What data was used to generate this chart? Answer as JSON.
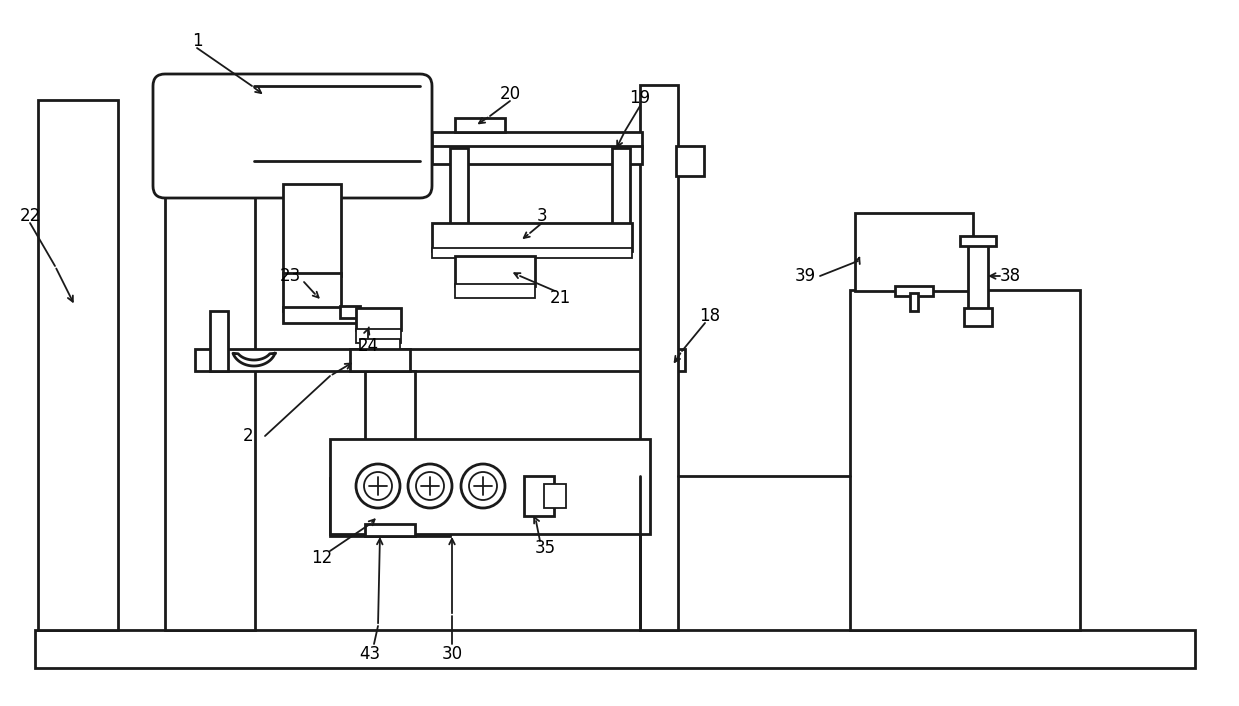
{
  "bg_color": "#ffffff",
  "line_color": "#1a1a1a",
  "lw": 2.0,
  "lw_thin": 1.3,
  "fig_width": 12.39,
  "fig_height": 7.06
}
